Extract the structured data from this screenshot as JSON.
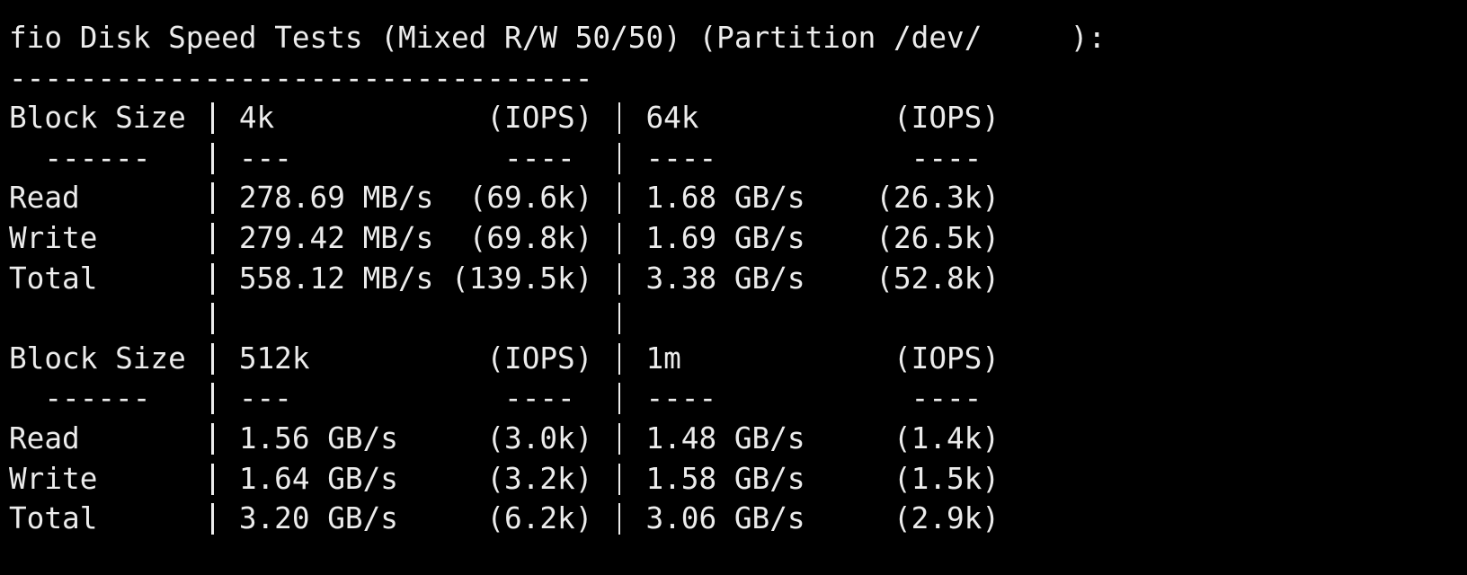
{
  "title": "fio Disk Speed Tests (Mixed R/W 50/50) (Partition /dev/     ):",
  "separator": "---------------------------------",
  "blocks": [
    {
      "header": [
        "Block Size",
        "4k",
        "(IOPS)",
        "64k",
        "(IOPS)"
      ],
      "dashes": [
        "------",
        "---",
        "----",
        "----",
        "----"
      ],
      "rows": [
        [
          "Read",
          "278.69 MB/s",
          "(69.6k)",
          "1.68 GB/s",
          "(26.3k)"
        ],
        [
          "Write",
          "279.42 MB/s",
          "(69.8k)",
          "1.69 GB/s",
          "(26.5k)"
        ],
        [
          "Total",
          "558.12 MB/s",
          "(139.5k)",
          "3.38 GB/s",
          "(52.8k)"
        ]
      ]
    },
    {
      "header": [
        "Block Size",
        "512k",
        "(IOPS)",
        "1m",
        "(IOPS)"
      ],
      "dashes": [
        "------",
        "---",
        "----",
        "----",
        "----"
      ],
      "rows": [
        [
          "Read",
          "1.56 GB/s",
          "(3.0k)",
          "1.48 GB/s",
          "(1.4k)"
        ],
        [
          "Write",
          "1.64 GB/s",
          "(3.2k)",
          "1.58 GB/s",
          "(1.5k)"
        ],
        [
          "Total",
          "3.20 GB/s",
          "(6.2k)",
          "3.06 GB/s",
          "(2.9k)"
        ]
      ]
    }
  ]
}
